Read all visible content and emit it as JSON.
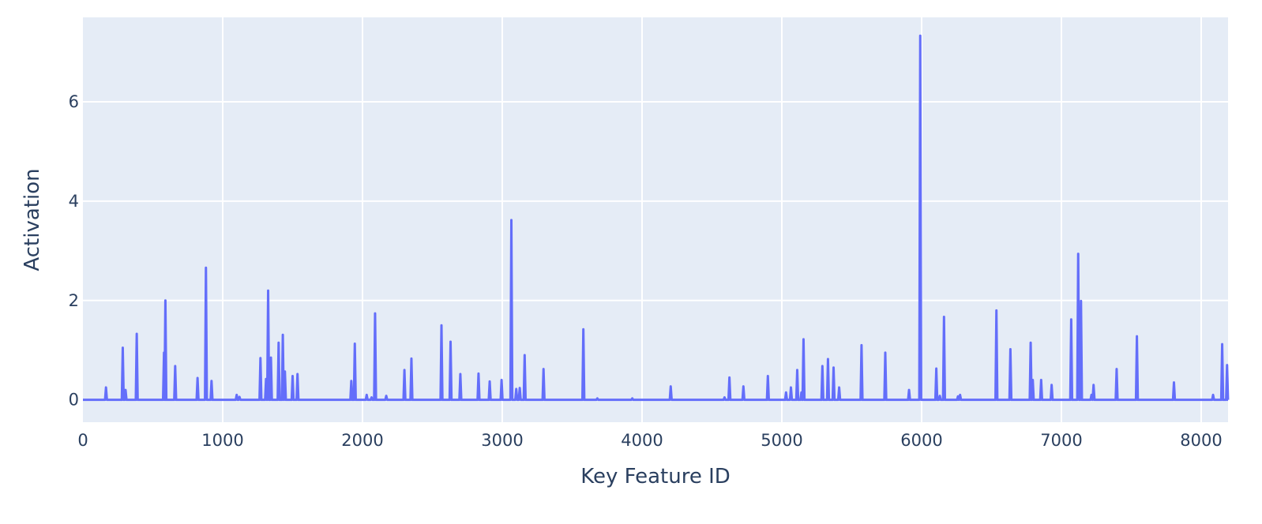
{
  "chart_data": {
    "type": "line",
    "title": "",
    "xlabel": "Key Feature ID",
    "ylabel": "Activation",
    "xlim": [
      0,
      8192
    ],
    "ylim": [
      -0.45,
      7.7
    ],
    "x_ticks": [
      0,
      1000,
      2000,
      3000,
      4000,
      5000,
      6000,
      7000,
      8000
    ],
    "x_tick_labels": [
      "0",
      "1000",
      "2000",
      "3000",
      "4000",
      "5000",
      "6000",
      "7000",
      "8000"
    ],
    "y_ticks": [
      0,
      2,
      4,
      6
    ],
    "y_tick_labels": [
      "0",
      "2",
      "4",
      "6"
    ],
    "grid": true,
    "legend": "none",
    "colors": {
      "plot_background": "#E5ECF6",
      "grid": "#ffffff",
      "line": "#636EFA",
      "text": "#2a3f5f"
    },
    "baseline": 0,
    "series": [
      {
        "x": [
          165,
          285,
          305,
          385,
          580,
          590,
          660,
          820,
          880,
          920,
          1100,
          1120,
          1270,
          1310,
          1325,
          1345,
          1400,
          1430,
          1445,
          1500,
          1535,
          1920,
          1945,
          2030,
          2065,
          2090,
          2170,
          2300,
          2350,
          2565,
          2630,
          2700,
          2830,
          2910,
          2995,
          3065,
          3100,
          3125,
          3160,
          3295,
          3580,
          3680,
          3930,
          4205,
          4590,
          4625,
          4725,
          4900,
          5030,
          5065,
          5110,
          5140,
          5155,
          5290,
          5330,
          5370,
          5410,
          5570,
          5740,
          5910,
          5990,
          6105,
          6130,
          6160,
          6260,
          6275,
          6535,
          6635,
          6780,
          6795,
          6855,
          6930,
          7070,
          7120,
          7140,
          7215,
          7230,
          7395,
          7540,
          7805,
          8085,
          8150,
          8185
        ],
        "values": [
          0.25,
          1.05,
          0.2,
          1.33,
          0.95,
          2.0,
          0.68,
          0.44,
          2.66,
          0.38,
          0.1,
          0.06,
          0.84,
          0.42,
          2.2,
          0.85,
          1.15,
          1.31,
          0.57,
          0.48,
          0.52,
          0.38,
          1.13,
          0.1,
          0.05,
          1.74,
          0.08,
          0.6,
          0.83,
          1.5,
          1.17,
          0.52,
          0.53,
          0.37,
          0.4,
          3.62,
          0.22,
          0.24,
          0.9,
          0.62,
          1.42,
          0.03,
          0.03,
          0.27,
          0.05,
          0.45,
          0.27,
          0.48,
          0.15,
          0.25,
          0.6,
          0.15,
          1.22,
          0.68,
          0.82,
          0.65,
          0.25,
          1.1,
          0.95,
          0.2,
          7.33,
          0.63,
          0.08,
          1.67,
          0.07,
          0.1,
          1.8,
          1.02,
          1.15,
          0.4,
          0.4,
          0.3,
          1.62,
          2.94,
          1.99,
          0.1,
          0.3,
          0.62,
          1.28,
          0.35,
          0.1,
          1.12,
          0.7
        ]
      }
    ]
  }
}
